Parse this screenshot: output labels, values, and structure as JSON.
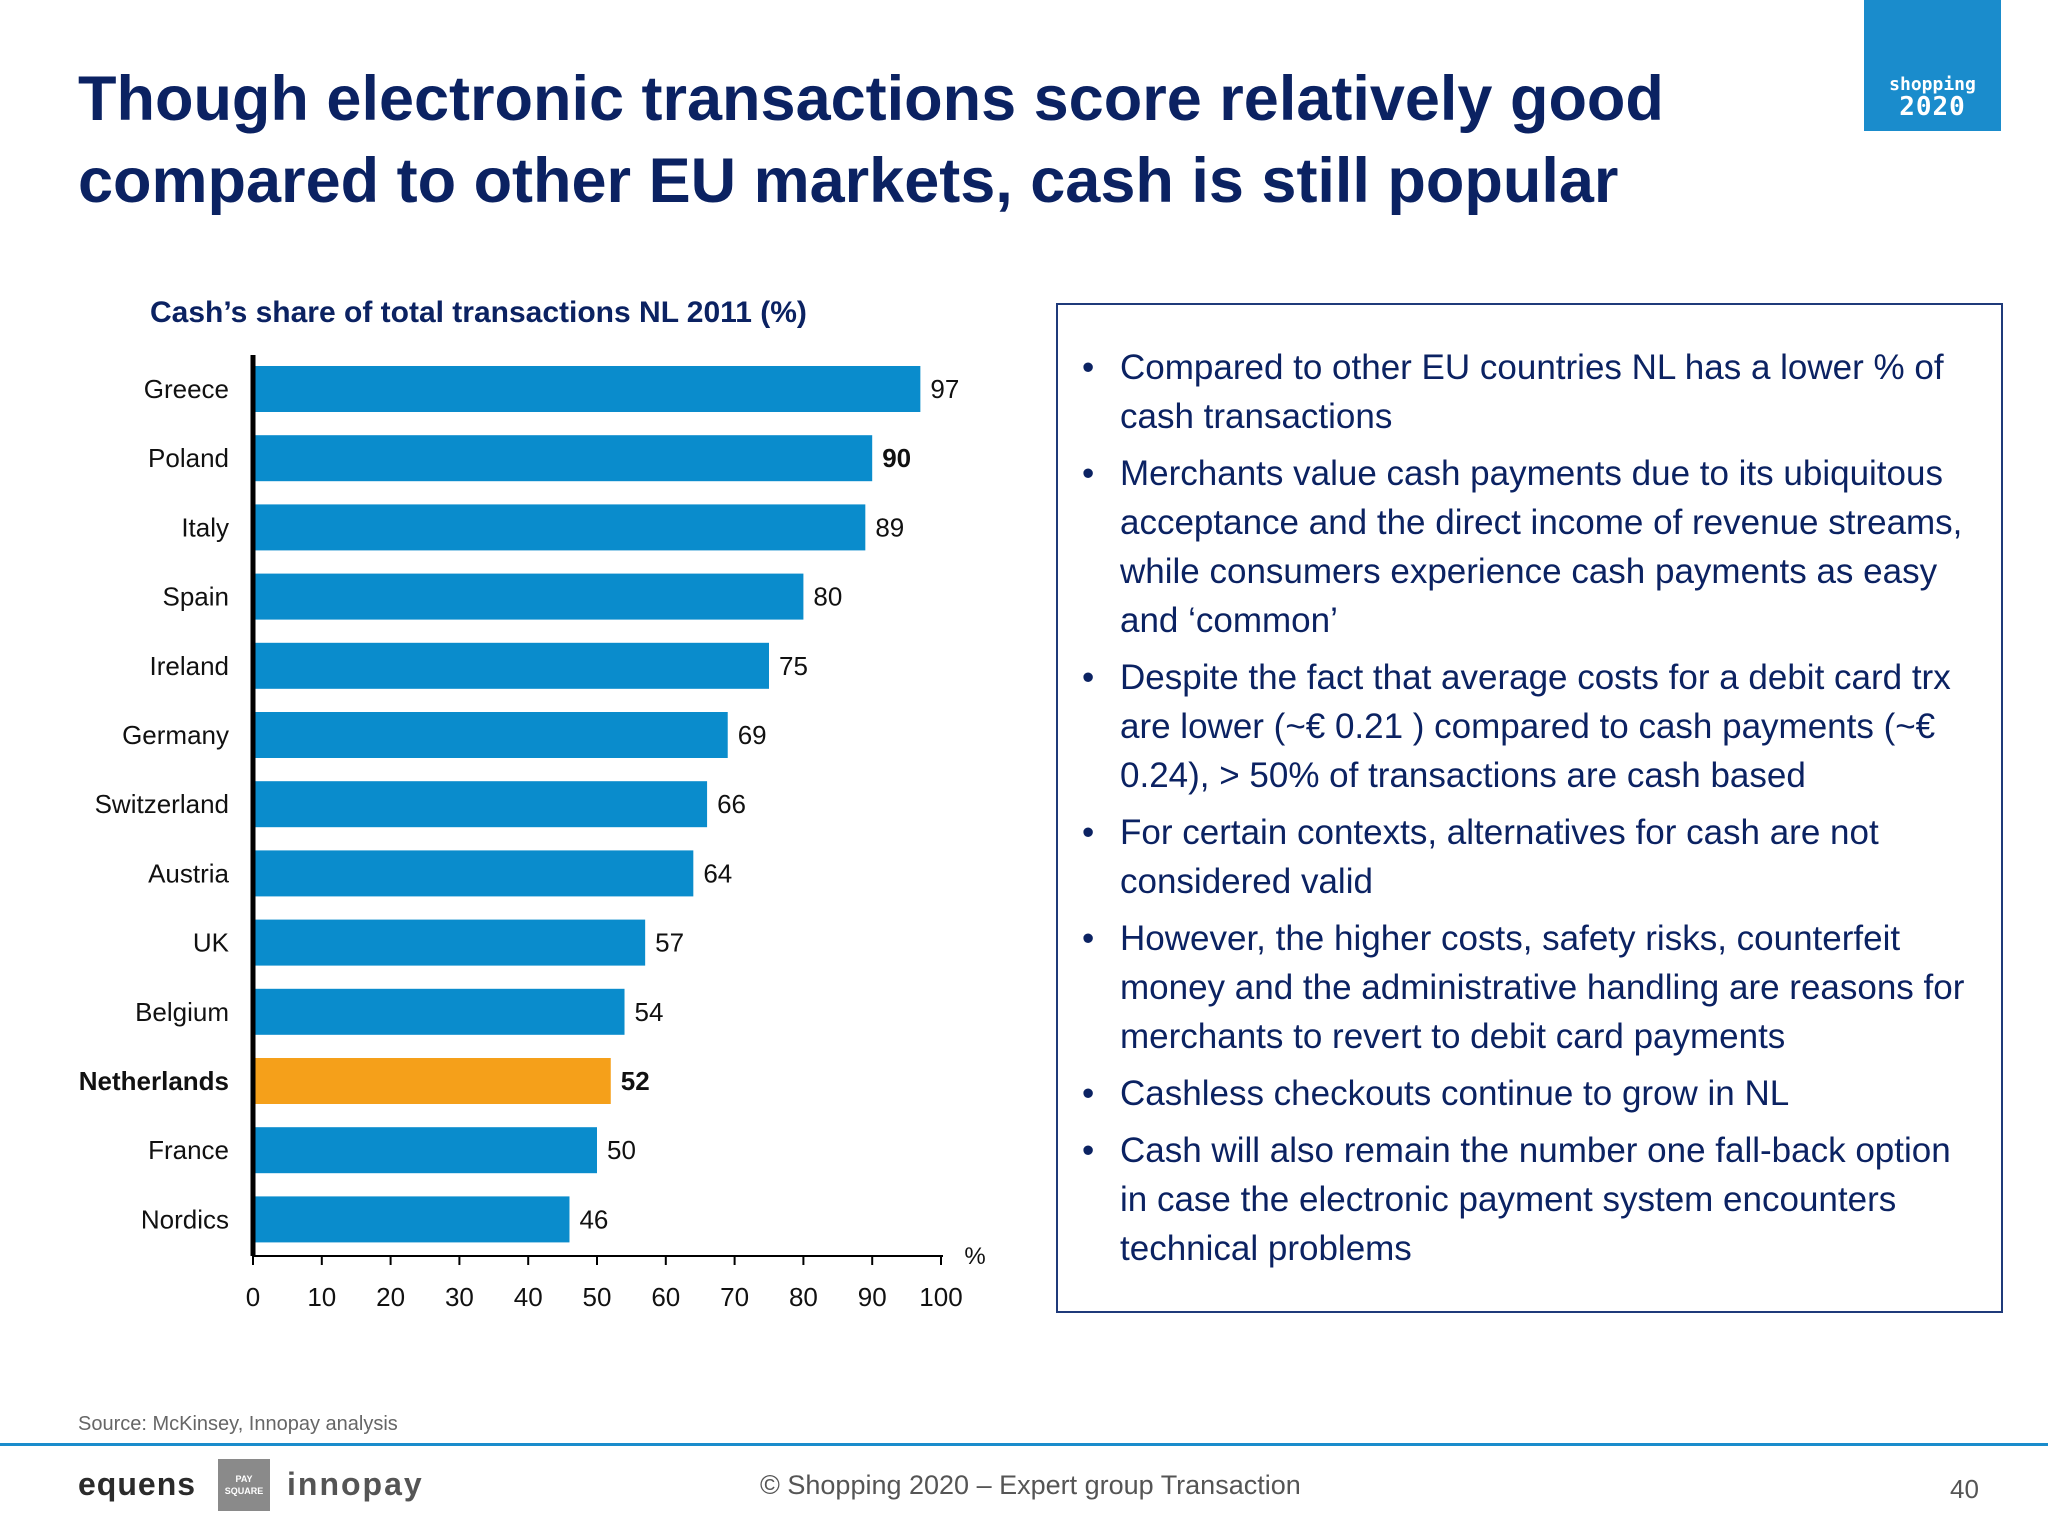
{
  "slide": {
    "title": "Though electronic transactions score relatively good compared to other EU markets, cash is still popular"
  },
  "logo": {
    "line1": "shopping",
    "line2": "2020"
  },
  "chart_data": {
    "type": "bar",
    "orientation": "horizontal",
    "title": "Cash’s share of total transactions NL 2011 (%)",
    "categories": [
      "Greece",
      "Poland",
      "Italy",
      "Spain",
      "Ireland",
      "Germany",
      "Switzerland",
      "Austria",
      "UK",
      "Belgium",
      "Netherlands",
      "France",
      "Nordics"
    ],
    "values": [
      97,
      90,
      89,
      80,
      75,
      69,
      66,
      64,
      57,
      54,
      52,
      50,
      46
    ],
    "highlight": "Netherlands",
    "bold_value_labels": [
      "Poland",
      "Netherlands"
    ],
    "xlabel": "%",
    "xlim": [
      0,
      100
    ],
    "xticks": [
      0,
      10,
      20,
      30,
      40,
      50,
      60,
      70,
      80,
      90,
      100
    ],
    "grid": false,
    "colors": {
      "bar": "#0a8ccc",
      "highlight": "#f5a01a",
      "axis": "#000000"
    }
  },
  "bullets": [
    "Compared to other EU countries NL has a lower % of cash transactions",
    "Merchants value cash payments due to its ubiquitous acceptance and the direct income of revenue streams, while consumers experience cash payments as easy and ‘common’",
    "Despite the fact that average costs for a debit card trx are lower (~€ 0.21 ) compared to cash payments (~€ 0.24), > 50% of transactions are cash based",
    "For certain contexts, alternatives for cash are not considered valid",
    "However, the higher costs, safety risks, counterfeit money and the administrative handling are reasons for merchants to revert to debit card payments",
    "Cashless checkouts continue to grow in NL",
    "Cash will also remain the number one fall-back option in case the electronic payment system encounters technical problems"
  ],
  "bullet_symbol": "•",
  "source": "Source: McKinsey, Innopay analysis",
  "footer": {
    "brand_left": "equens",
    "brand_middle": "PAY SQUARE",
    "brand_right": "innopay",
    "center_text": "© Shopping 2020 – Expert group Transaction",
    "page_number": "40"
  }
}
